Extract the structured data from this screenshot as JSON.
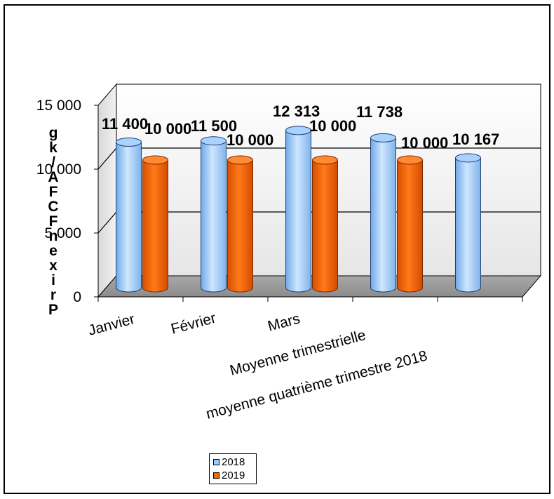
{
  "chart_data": {
    "type": "bar",
    "categories": [
      "Janvier",
      "Février",
      "Mars",
      "Moyenne trimestrielle",
      "moyenne quatrième trimestre 2018"
    ],
    "series": [
      {
        "name": "2018",
        "values": [
          11400,
          11500,
          12313,
          11738,
          10167
        ],
        "labels": [
          "11 400",
          "11 500",
          "12 313",
          "11 738",
          "10 167"
        ],
        "color": "#99CCFF"
      },
      {
        "name": "2019",
        "values": [
          10000,
          10000,
          10000,
          10000,
          null
        ],
        "labels": [
          "10 000",
          "10 000",
          "10 000",
          "10 000",
          ""
        ],
        "color": "#FF6600"
      }
    ],
    "ylabel": "Prix en FCFA/kg",
    "yticks": [
      "0",
      "5 000",
      "10 000",
      "15 000"
    ],
    "ylim": [
      0,
      15000
    ],
    "grid": true,
    "legend_position": "bottom"
  }
}
